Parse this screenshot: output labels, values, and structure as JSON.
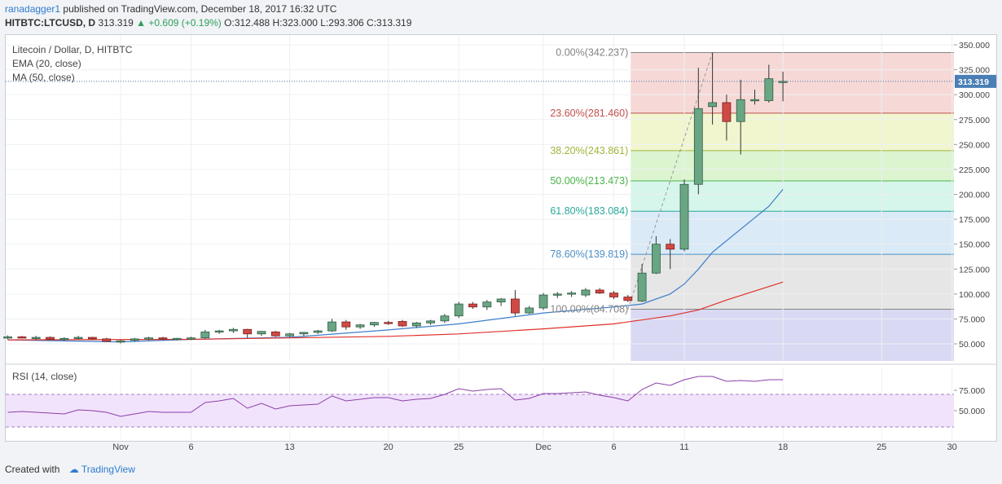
{
  "header": {
    "author": "ranadagger1",
    "published": "published on TradingView.com, December 18, 2017 16:32 UTC",
    "symbol": "HITBTC:LTCUSD, D",
    "last": "313.319",
    "change": "+0.609 (+0.19%)",
    "open": "312.488",
    "high": "323.000",
    "low": "293.306",
    "close": "313.319"
  },
  "footer": {
    "created_with": "Created with",
    "brand": "TradingView"
  },
  "chart_data": {
    "type": "candlestick",
    "legend": [
      "Litecoin / Dollar, D, HITBTC",
      "EMA (20, close)",
      "MA (50, close)"
    ],
    "last_price_label": "313.319",
    "ylim": [
      35,
      355
    ],
    "price_ticks": [
      "50.000",
      "75.000",
      "100.000",
      "125.000",
      "150.000",
      "175.000",
      "200.000",
      "225.000",
      "250.000",
      "275.000",
      "300.000",
      "325.000",
      "350.000"
    ],
    "x_ticks": [
      {
        "day": 31,
        "label": "Nov"
      },
      {
        "day": 36,
        "label": "6"
      },
      {
        "day": 43,
        "label": "13"
      },
      {
        "day": 50,
        "label": "20"
      },
      {
        "day": 55,
        "label": "25"
      },
      {
        "day": 61,
        "label": "Dec"
      },
      {
        "day": 66,
        "label": "6"
      },
      {
        "day": 71,
        "label": "11"
      },
      {
        "day": 78,
        "label": "18"
      },
      {
        "day": 85,
        "label": "25"
      },
      {
        "day": 90,
        "label": "30"
      }
    ],
    "candles": [
      {
        "day": 23,
        "o": 56.0,
        "h": 58.5,
        "l": 54.5,
        "c": 57.0
      },
      {
        "day": 24,
        "o": 57.0,
        "h": 58.0,
        "l": 55.5,
        "c": 56.5
      },
      {
        "day": 25,
        "o": 56.0,
        "h": 58.0,
        "l": 54.0,
        "c": 56.5
      },
      {
        "day": 26,
        "o": 56.5,
        "h": 57.5,
        "l": 54.0,
        "c": 54.5
      },
      {
        "day": 27,
        "o": 54.5,
        "h": 56.5,
        "l": 53.0,
        "c": 55.5
      },
      {
        "day": 28,
        "o": 55.5,
        "h": 58.0,
        "l": 54.5,
        "c": 56.5
      },
      {
        "day": 29,
        "o": 56.5,
        "h": 57.0,
        "l": 54.0,
        "c": 55.0
      },
      {
        "day": 30,
        "o": 55.0,
        "h": 56.0,
        "l": 52.0,
        "c": 52.5
      },
      {
        "day": 31,
        "o": 52.5,
        "h": 54.0,
        "l": 50.5,
        "c": 53.0
      },
      {
        "day": 32,
        "o": 53.5,
        "h": 56.0,
        "l": 52.0,
        "c": 55.0
      },
      {
        "day": 33,
        "o": 55.0,
        "h": 57.0,
        "l": 53.5,
        "c": 56.0
      },
      {
        "day": 34,
        "o": 56.0,
        "h": 57.0,
        "l": 54.0,
        "c": 55.0
      },
      {
        "day": 35,
        "o": 55.0,
        "h": 56.0,
        "l": 53.5,
        "c": 55.5
      },
      {
        "day": 36,
        "o": 55.5,
        "h": 57.0,
        "l": 54.0,
        "c": 56.0
      },
      {
        "day": 37,
        "o": 56.0,
        "h": 64.0,
        "l": 55.0,
        "c": 62.0
      },
      {
        "day": 38,
        "o": 62.0,
        "h": 64.0,
        "l": 60.0,
        "c": 63.0
      },
      {
        "day": 39,
        "o": 63.0,
        "h": 66.0,
        "l": 61.0,
        "c": 64.5
      },
      {
        "day": 40,
        "o": 64.5,
        "h": 65.0,
        "l": 56.0,
        "c": 60.0
      },
      {
        "day": 41,
        "o": 60.0,
        "h": 63.0,
        "l": 58.0,
        "c": 62.5
      },
      {
        "day": 42,
        "o": 62.0,
        "h": 63.0,
        "l": 57.0,
        "c": 58.0
      },
      {
        "day": 43,
        "o": 58.0,
        "h": 61.0,
        "l": 57.0,
        "c": 60.0
      },
      {
        "day": 44,
        "o": 60.0,
        "h": 62.0,
        "l": 58.0,
        "c": 61.5
      },
      {
        "day": 45,
        "o": 61.5,
        "h": 64.0,
        "l": 60.0,
        "c": 63.0
      },
      {
        "day": 46,
        "o": 63.0,
        "h": 75.0,
        "l": 62.0,
        "c": 72.0
      },
      {
        "day": 47,
        "o": 72.0,
        "h": 74.0,
        "l": 64.0,
        "c": 67.0
      },
      {
        "day": 48,
        "o": 67.0,
        "h": 70.0,
        "l": 65.0,
        "c": 69.0
      },
      {
        "day": 49,
        "o": 69.0,
        "h": 72.0,
        "l": 67.0,
        "c": 71.5
      },
      {
        "day": 50,
        "o": 71.5,
        "h": 73.0,
        "l": 69.0,
        "c": 70.5
      },
      {
        "day": 51,
        "o": 72.5,
        "h": 74.0,
        "l": 67.0,
        "c": 68.0
      },
      {
        "day": 52,
        "o": 68.0,
        "h": 72.0,
        "l": 66.0,
        "c": 71.0
      },
      {
        "day": 53,
        "o": 71.0,
        "h": 74.0,
        "l": 69.0,
        "c": 73.0
      },
      {
        "day": 54,
        "o": 73.0,
        "h": 80.0,
        "l": 71.0,
        "c": 78.0
      },
      {
        "day": 55,
        "o": 78.0,
        "h": 92.0,
        "l": 76.0,
        "c": 90.0
      },
      {
        "day": 56,
        "o": 90.0,
        "h": 92.0,
        "l": 85.0,
        "c": 87.0
      },
      {
        "day": 57,
        "o": 87.0,
        "h": 94.0,
        "l": 84.0,
        "c": 92.0
      },
      {
        "day": 58,
        "o": 92.0,
        "h": 96.0,
        "l": 88.0,
        "c": 95.0
      },
      {
        "day": 59,
        "o": 95.0,
        "h": 104.0,
        "l": 78.0,
        "c": 81.0
      },
      {
        "day": 60,
        "o": 81.0,
        "h": 88.0,
        "l": 80.0,
        "c": 86.0
      },
      {
        "day": 61,
        "o": 86.0,
        "h": 101.0,
        "l": 84.0,
        "c": 99.0
      },
      {
        "day": 62,
        "o": 99.0,
        "h": 102.0,
        "l": 96.0,
        "c": 100.0
      },
      {
        "day": 63,
        "o": 100.0,
        "h": 103.0,
        "l": 97.0,
        "c": 101.0
      },
      {
        "day": 64,
        "o": 99.0,
        "h": 106.0,
        "l": 97.0,
        "c": 104.0
      },
      {
        "day": 65,
        "o": 104.0,
        "h": 106.0,
        "l": 100.0,
        "c": 101.0
      },
      {
        "day": 66,
        "o": 101.0,
        "h": 103.0,
        "l": 95.0,
        "c": 97.0
      },
      {
        "day": 67,
        "o": 97.0,
        "h": 99.0,
        "l": 92.0,
        "c": 93.5
      },
      {
        "day": 68,
        "o": 93.0,
        "h": 130.0,
        "l": 92.0,
        "c": 121.0
      },
      {
        "day": 69,
        "o": 121.0,
        "h": 158.0,
        "l": 120.0,
        "c": 150.0
      },
      {
        "day": 70,
        "o": 150.0,
        "h": 155.0,
        "l": 125.0,
        "c": 145.0
      },
      {
        "day": 71,
        "o": 145.0,
        "h": 215.0,
        "l": 143.0,
        "c": 210.0
      },
      {
        "day": 72,
        "o": 210.0,
        "h": 327.0,
        "l": 200.0,
        "c": 286.0
      },
      {
        "day": 73,
        "o": 288.0,
        "h": 342.2,
        "l": 270.0,
        "c": 292.0
      },
      {
        "day": 74,
        "o": 292.0,
        "h": 300.0,
        "l": 254.0,
        "c": 273.0
      },
      {
        "day": 75,
        "o": 273.0,
        "h": 315.0,
        "l": 240.0,
        "c": 295.0
      },
      {
        "day": 76,
        "o": 294.0,
        "h": 305.0,
        "l": 290.0,
        "c": 295.0
      },
      {
        "day": 77,
        "o": 294.0,
        "h": 330.0,
        "l": 292.0,
        "c": 316.0
      },
      {
        "day": 78,
        "o": 312.488,
        "h": 323.0,
        "l": 293.306,
        "c": 313.319
      }
    ],
    "ema20": [
      [
        23,
        54.0
      ],
      [
        31,
        52.0
      ],
      [
        36,
        54.5
      ],
      [
        43,
        56.5
      ],
      [
        50,
        64.0
      ],
      [
        55,
        70.0
      ],
      [
        61,
        81.0
      ],
      [
        66,
        87.0
      ],
      [
        68,
        90.0
      ],
      [
        70,
        100.0
      ],
      [
        71,
        110.0
      ],
      [
        72,
        125.0
      ],
      [
        73,
        142.0
      ],
      [
        75,
        165.0
      ],
      [
        77,
        188.0
      ],
      [
        78,
        205.0
      ]
    ],
    "ma50": [
      [
        23,
        54.0
      ],
      [
        36,
        54.5
      ],
      [
        43,
        56.0
      ],
      [
        50,
        57.5
      ],
      [
        55,
        60.0
      ],
      [
        61,
        65.0
      ],
      [
        66,
        70.0
      ],
      [
        70,
        78.0
      ],
      [
        72,
        84.0
      ],
      [
        74,
        94.0
      ],
      [
        76,
        103.0
      ],
      [
        78,
        112.0
      ]
    ],
    "fib_levels": [
      {
        "label": "0.00%(342.237)",
        "value": 342.237,
        "color": "#848484",
        "fill": "#f5d2d0"
      },
      {
        "label": "23.60%(281.460)",
        "value": 281.46,
        "color": "#c0504d",
        "fill": "#eef5c6"
      },
      {
        "label": "38.20%(243.861)",
        "value": 243.861,
        "color": "#a0b43a",
        "fill": "#d6f3c8"
      },
      {
        "label": "50.00%(213.473)",
        "value": 213.473,
        "color": "#4ab34a",
        "fill": "#cff3e8"
      },
      {
        "label": "61.80%(183.084)",
        "value": 183.084,
        "color": "#2aa99a",
        "fill": "#d3e6f5"
      },
      {
        "label": "78.60%(139.819)",
        "value": 139.819,
        "color": "#4b8fc7",
        "fill": "#e2e2e2"
      },
      {
        "label": "100.00%(84.708)",
        "value": 84.708,
        "color": "#848484",
        "fill": "#d4d2f2"
      }
    ],
    "rsi": {
      "label": "RSI (14, close)",
      "ticks": [
        "50.000",
        "75.000"
      ],
      "ylim": [
        20,
        102
      ],
      "upper": 70,
      "lower": 30,
      "values": [
        [
          23,
          48
        ],
        [
          24,
          49
        ],
        [
          25,
          48
        ],
        [
          27,
          46
        ],
        [
          28,
          51
        ],
        [
          29,
          50
        ],
        [
          30,
          48
        ],
        [
          31,
          43
        ],
        [
          32,
          46
        ],
        [
          33,
          49
        ],
        [
          34,
          48
        ],
        [
          36,
          48
        ],
        [
          37,
          60
        ],
        [
          38,
          62
        ],
        [
          39,
          65
        ],
        [
          40,
          53
        ],
        [
          41,
          59
        ],
        [
          42,
          52
        ],
        [
          43,
          56
        ],
        [
          44,
          57
        ],
        [
          45,
          58
        ],
        [
          46,
          68
        ],
        [
          47,
          62
        ],
        [
          48,
          64
        ],
        [
          49,
          66
        ],
        [
          50,
          66
        ],
        [
          51,
          62
        ],
        [
          52,
          64
        ],
        [
          53,
          65
        ],
        [
          54,
          70
        ],
        [
          55,
          77
        ],
        [
          56,
          74
        ],
        [
          57,
          76
        ],
        [
          58,
          77
        ],
        [
          59,
          63
        ],
        [
          60,
          65
        ],
        [
          61,
          71
        ],
        [
          62,
          71
        ],
        [
          63,
          72
        ],
        [
          64,
          73
        ],
        [
          65,
          69
        ],
        [
          66,
          66
        ],
        [
          67,
          62
        ],
        [
          68,
          76
        ],
        [
          69,
          84
        ],
        [
          70,
          81
        ],
        [
          71,
          88
        ],
        [
          72,
          92
        ],
        [
          73,
          92
        ],
        [
          74,
          86
        ],
        [
          75,
          87
        ],
        [
          76,
          86
        ],
        [
          77,
          88
        ],
        [
          78,
          88
        ]
      ]
    }
  }
}
